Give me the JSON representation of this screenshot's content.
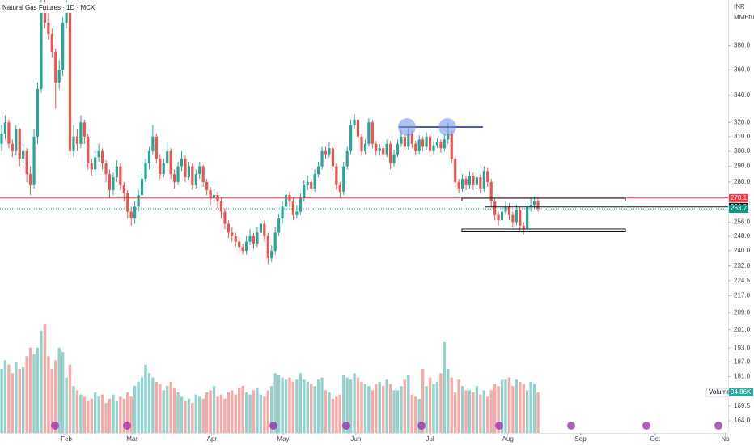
{
  "chart_data": {
    "type": "candlestick",
    "title": "Natural Gas Futures · 1D · MCX",
    "currency": "INR",
    "unit": "MMBtu",
    "log_scale": true,
    "grid": false,
    "up_color": "#26a69a",
    "down_color": "#ef5350",
    "ylim": [
      159.6,
      421
    ],
    "yticks": [
      {
        "value": 380,
        "label": "380.0"
      },
      {
        "value": 360,
        "label": "360.0"
      },
      {
        "value": 340,
        "label": "340.0"
      },
      {
        "value": 320,
        "label": "320.0"
      },
      {
        "value": 310,
        "label": "310.0"
      },
      {
        "value": 300,
        "label": "300.0"
      },
      {
        "value": 290,
        "label": "290.0"
      },
      {
        "value": 280,
        "label": "280.0"
      },
      {
        "value": 256,
        "label": "256.0"
      },
      {
        "value": 248,
        "label": "248.0"
      },
      {
        "value": 240,
        "label": "240.0"
      },
      {
        "value": 232,
        "label": "232.0"
      },
      224.5,
      {
        "value": 217,
        "label": "217.0"
      },
      {
        "value": 209,
        "label": "209.0"
      },
      {
        "value": 201,
        "label": "201.0"
      },
      {
        "value": 193,
        "label": "193.0"
      },
      {
        "value": 187,
        "label": "187.0"
      },
      {
        "value": 181,
        "label": "181.0"
      },
      169.5,
      {
        "value": 164,
        "label": "164.0"
      }
    ],
    "xlim": [
      -0.45,
      201.8
    ],
    "xticks": [
      {
        "value": 18,
        "label": "Feb"
      },
      {
        "value": 36.2,
        "label": "Mar"
      },
      {
        "value": 58.4,
        "label": "Apr"
      },
      {
        "value": 78.2,
        "label": "May"
      },
      {
        "value": 98.4,
        "label": "Jun"
      },
      {
        "value": 119,
        "label": "Jul"
      },
      {
        "value": 140.6,
        "label": "Aug"
      },
      {
        "value": 160.8,
        "label": "Sep"
      },
      {
        "value": 181.5,
        "label": "Oct"
      },
      {
        "value": 201,
        "label": "No"
      }
    ],
    "price_lines": [
      {
        "value": 270.1,
        "color": "#f23645"
      },
      {
        "value": 264.8,
        "color": "#131722"
      },
      {
        "value": 263.7,
        "color": "#089981",
        "dotted": true
      }
    ],
    "ohlc": [
      [
        305,
        318,
        300,
        312
      ],
      [
        312,
        325,
        308,
        320
      ],
      [
        320,
        322,
        302,
        305
      ],
      [
        305,
        308,
        296,
        300
      ],
      [
        300,
        318,
        297,
        315
      ],
      [
        315,
        316,
        290,
        295
      ],
      [
        295,
        305,
        292,
        300
      ],
      [
        300,
        302,
        280,
        285
      ],
      [
        285,
        290,
        272,
        278
      ],
      [
        278,
        315,
        276,
        310
      ],
      [
        310,
        350,
        305,
        345
      ],
      [
        345,
        425,
        342,
        410
      ],
      [
        410,
        425,
        395,
        400
      ],
      [
        400,
        410,
        385,
        390
      ],
      [
        390,
        395,
        370,
        375
      ],
      [
        375,
        378,
        330,
        350
      ],
      [
        350,
        368,
        345,
        360
      ],
      [
        360,
        405,
        355,
        400
      ],
      [
        400,
        425,
        395,
        410
      ],
      [
        410,
        412,
        295,
        300
      ],
      [
        300,
        318,
        296,
        310
      ],
      [
        310,
        315,
        300,
        305
      ],
      [
        305,
        325,
        302,
        320
      ],
      [
        320,
        322,
        305,
        310
      ],
      [
        310,
        312,
        288,
        292
      ],
      [
        292,
        295,
        284,
        288
      ],
      [
        288,
        300,
        286,
        296
      ],
      [
        296,
        305,
        293,
        300
      ],
      [
        300,
        302,
        288,
        292
      ],
      [
        292,
        294,
        280,
        285
      ],
      [
        285,
        288,
        270,
        275
      ],
      [
        275,
        286,
        272,
        283
      ],
      [
        283,
        294,
        280,
        290
      ],
      [
        290,
        292,
        275,
        278
      ],
      [
        278,
        280,
        268,
        273
      ],
      [
        273,
        275,
        258,
        262
      ],
      [
        262,
        265,
        254,
        258
      ],
      [
        258,
        268,
        255,
        265
      ],
      [
        265,
        275,
        262,
        272
      ],
      [
        272,
        285,
        270,
        282
      ],
      [
        282,
        295,
        280,
        292
      ],
      [
        292,
        303,
        288,
        300
      ],
      [
        300,
        318,
        298,
        310
      ],
      [
        310,
        312,
        292,
        295
      ],
      [
        295,
        298,
        282,
        285
      ],
      [
        285,
        295,
        283,
        292
      ],
      [
        292,
        306,
        290,
        300
      ],
      [
        300,
        302,
        282,
        285
      ],
      [
        285,
        288,
        276,
        280
      ],
      [
        280,
        293,
        278,
        290
      ],
      [
        290,
        300,
        287,
        295
      ],
      [
        295,
        297,
        280,
        283
      ],
      [
        283,
        293,
        281,
        290
      ],
      [
        290,
        292,
        275,
        278
      ],
      [
        278,
        288,
        276,
        285
      ],
      [
        285,
        293,
        282,
        290
      ],
      [
        290,
        291,
        277,
        280
      ],
      [
        280,
        282,
        272,
        275
      ],
      [
        275,
        277,
        266,
        270
      ],
      [
        270,
        276,
        267,
        272
      ],
      [
        272,
        274,
        264,
        268
      ],
      [
        268,
        270,
        258,
        262
      ],
      [
        262,
        264,
        252,
        255
      ],
      [
        255,
        257,
        247,
        250
      ],
      [
        250,
        253,
        245,
        248
      ],
      [
        248,
        250,
        242,
        245
      ],
      [
        245,
        247,
        239,
        242
      ],
      [
        242,
        244,
        238,
        240
      ],
      [
        240,
        248,
        238,
        245
      ],
      [
        245,
        252,
        243,
        248
      ],
      [
        248,
        250,
        241,
        244
      ],
      [
        244,
        253,
        242,
        250
      ],
      [
        250,
        258,
        248,
        255
      ],
      [
        255,
        257,
        245,
        248
      ],
      [
        248,
        250,
        233,
        236
      ],
      [
        236,
        243,
        234,
        240
      ],
      [
        240,
        253,
        238,
        250
      ],
      [
        250,
        261,
        248,
        258
      ],
      [
        258,
        268,
        255,
        265
      ],
      [
        265,
        275,
        262,
        272
      ],
      [
        272,
        274,
        265,
        268
      ],
      [
        268,
        270,
        257,
        260
      ],
      [
        260,
        266,
        258,
        262
      ],
      [
        262,
        273,
        260,
        270
      ],
      [
        270,
        281,
        268,
        278
      ],
      [
        278,
        284,
        275,
        280
      ],
      [
        280,
        282,
        273,
        276
      ],
      [
        276,
        288,
        274,
        285
      ],
      [
        285,
        293,
        283,
        290
      ],
      [
        290,
        303,
        288,
        300
      ],
      [
        300,
        303,
        295,
        298
      ],
      [
        298,
        306,
        296,
        302
      ],
      [
        302,
        304,
        287,
        290
      ],
      [
        290,
        292,
        275,
        278
      ],
      [
        278,
        280,
        270,
        274
      ],
      [
        274,
        293,
        272,
        290
      ],
      [
        290,
        303,
        288,
        300
      ],
      [
        300,
        322,
        298,
        318
      ],
      [
        318,
        326,
        315,
        322
      ],
      [
        322,
        324,
        307,
        310
      ],
      [
        310,
        312,
        297,
        300
      ],
      [
        300,
        308,
        298,
        305
      ],
      [
        305,
        323,
        303,
        320
      ],
      [
        320,
        322,
        302,
        305
      ],
      [
        305,
        307,
        297,
        300
      ],
      [
        300,
        305,
        297,
        302
      ],
      [
        302,
        304,
        294,
        298
      ],
      [
        298,
        308,
        296,
        305
      ],
      [
        305,
        307,
        288,
        292
      ],
      [
        292,
        301,
        290,
        298
      ],
      [
        298,
        308,
        296,
        305
      ],
      [
        305,
        314,
        303,
        310
      ],
      [
        310,
        312,
        300,
        303
      ],
      [
        303,
        316,
        301,
        312
      ],
      [
        312,
        314,
        302,
        305
      ],
      [
        305,
        307,
        297,
        300
      ],
      [
        300,
        311,
        298,
        308
      ],
      [
        308,
        310,
        300,
        303
      ],
      [
        303,
        313,
        301,
        310
      ],
      [
        310,
        312,
        297,
        300
      ],
      [
        300,
        307,
        298,
        304
      ],
      [
        304,
        309,
        302,
        306
      ],
      [
        306,
        308,
        299,
        302
      ],
      [
        302,
        312,
        300,
        308
      ],
      [
        308,
        320,
        305,
        312
      ],
      [
        312,
        314,
        292,
        295
      ],
      [
        295,
        297,
        277,
        280
      ],
      [
        280,
        282,
        273,
        276
      ],
      [
        276,
        285,
        274,
        282
      ],
      [
        282,
        284,
        275,
        278
      ],
      [
        278,
        287,
        276,
        284
      ],
      [
        284,
        286,
        275,
        278
      ],
      [
        278,
        286,
        276,
        283
      ],
      [
        283,
        285,
        273,
        276
      ],
      [
        276,
        290,
        274,
        287
      ],
      [
        287,
        289,
        277,
        280
      ],
      [
        280,
        282,
        265,
        268
      ],
      [
        268,
        270,
        257,
        260
      ],
      [
        260,
        262,
        254,
        257
      ],
      [
        257,
        265,
        255,
        262
      ],
      [
        262,
        268,
        260,
        265
      ],
      [
        265,
        267,
        257,
        260
      ],
      [
        260,
        262,
        253,
        256
      ],
      [
        256,
        266,
        254,
        263
      ],
      [
        263,
        265,
        251,
        254
      ],
      [
        254,
        256,
        249,
        252
      ],
      [
        252,
        268,
        250,
        265
      ],
      [
        265,
        270,
        262,
        266
      ],
      [
        266,
        271,
        264,
        268
      ],
      [
        268,
        270,
        262,
        263.7
      ]
    ],
    "volume": {
      "name": "Volume",
      "last_value_label": "94.86K",
      "vlim": [
        0,
        266
      ],
      "values": [
        150,
        170,
        160,
        140,
        165,
        150,
        155,
        180,
        200,
        185,
        200,
        240,
        256,
        180,
        150,
        170,
        200,
        190,
        130,
        160,
        110,
        100,
        90,
        85,
        75,
        80,
        95,
        85,
        90,
        70,
        80,
        90,
        75,
        85,
        80,
        95,
        85,
        110,
        120,
        130,
        160,
        140,
        130,
        120,
        115,
        100,
        110,
        120,
        105,
        95,
        85,
        75,
        80,
        70,
        90,
        85,
        80,
        95,
        100,
        110,
        85,
        90,
        80,
        95,
        100,
        90,
        105,
        110,
        95,
        90,
        100,
        105,
        90,
        85,
        100,
        110,
        140,
        135,
        130,
        125,
        130,
        120,
        125,
        140,
        125,
        120,
        115,
        110,
        125,
        130,
        100,
        95,
        80,
        85,
        90,
        135,
        130,
        125,
        140,
        130,
        120,
        115,
        110,
        100,
        115,
        120,
        110,
        125,
        115,
        100,
        100,
        110,
        125,
        135,
        90,
        85,
        80,
        150,
        110,
        130,
        115,
        120,
        140,
        213,
        150,
        130,
        95,
        125,
        110,
        100,
        100,
        95,
        110,
        90,
        100,
        85,
        100,
        115,
        110,
        125,
        125,
        130,
        110,
        125,
        120,
        115,
        100,
        120,
        115,
        94.86
      ]
    }
  }
}
